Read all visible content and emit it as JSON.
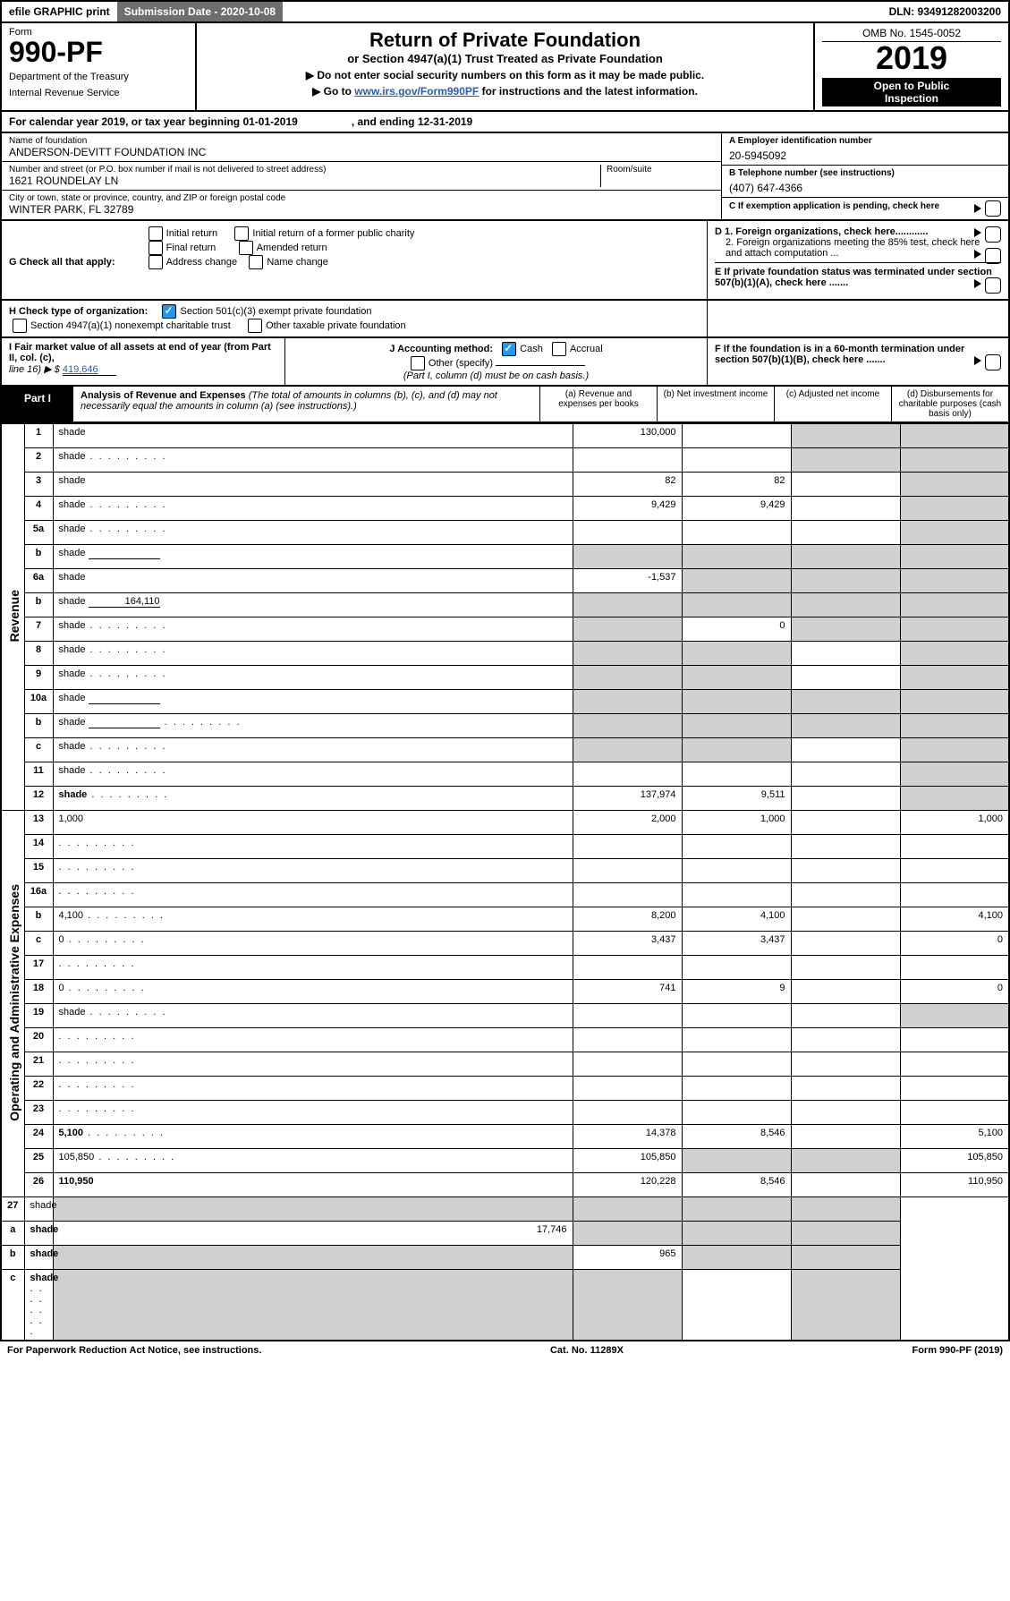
{
  "top_bar": {
    "efile": "efile GRAPHIC print",
    "sub_date_label": "Submission Date - 2020-10-08",
    "dln": "DLN: 93491282003200"
  },
  "header": {
    "form_word": "Form",
    "form_number": "990-PF",
    "dept1": "Department of the Treasury",
    "dept2": "Internal Revenue Service",
    "title": "Return of Private Foundation",
    "subtitle": "or Section 4947(a)(1) Trust Treated as Private Foundation",
    "instr1": "▶ Do not enter social security numbers on this form as it may be made public.",
    "instr2_pre": "▶ Go to ",
    "instr2_link": "www.irs.gov/Form990PF",
    "instr2_post": " for instructions and the latest information.",
    "omb": "OMB No. 1545-0052",
    "year": "2019",
    "open1": "Open to Public",
    "open2": "Inspection"
  },
  "cal": {
    "a": "For calendar year 2019, or tax year beginning 01-01-2019",
    "b": ", and ending 12-31-2019"
  },
  "info": {
    "name_label": "Name of foundation",
    "name": "ANDERSON-DEVITT FOUNDATION INC",
    "addr_label": "Number and street (or P.O. box number if mail is not delivered to street address)",
    "addr": "1621 ROUNDELAY LN",
    "room_label": "Room/suite",
    "city_label": "City or town, state or province, country, and ZIP or foreign postal code",
    "city": "WINTER PARK, FL  32789",
    "a_label": "A Employer identification number",
    "a_val": "20-5945092",
    "b_label": "B Telephone number (see instructions)",
    "b_val": "(407) 647-4366",
    "c_label": "C If exemption application is pending, check here"
  },
  "g": {
    "label": "G Check all that apply:",
    "opts": [
      "Initial return",
      "Initial return of a former public charity",
      "Final return",
      "Amended return",
      "Address change",
      "Name change"
    ],
    "d1": "D 1. Foreign organizations, check here............",
    "d2": "2. Foreign organizations meeting the 85% test, check here and attach computation ...",
    "e": "E  If private foundation status was terminated under section 507(b)(1)(A), check here ......."
  },
  "h": {
    "label": "H Check type of organization:",
    "o1": "Section 501(c)(3) exempt private foundation",
    "o2": "Section 4947(a)(1) nonexempt charitable trust",
    "o3": "Other taxable private foundation"
  },
  "ij": {
    "i_label1": "I Fair market value of all assets at end of year (from Part II, col. (c),",
    "i_label2": "line 16) ▶ $",
    "i_val": "419,646",
    "j_label": "J Accounting method:",
    "j_cash": "Cash",
    "j_accrual": "Accrual",
    "j_other": "Other (specify)",
    "j_note": "(Part I, column (d) must be on cash basis.)",
    "f": "F  If the foundation is in a 60-month termination under section 507(b)(1)(B), check here ......."
  },
  "part1_header": {
    "part": "Part I",
    "title": "Analysis of Revenue and Expenses",
    "note": " (The total of amounts in columns (b), (c), and (d) may not necessarily equal the amounts in column (a) (see instructions).)",
    "col_a": "(a)   Revenue and expenses per books",
    "col_b": "(b)  Net investment income",
    "col_c": "(c)  Adjusted net income",
    "col_d": "(d)  Disbursements for charitable purposes (cash basis only)"
  },
  "side_labels": {
    "revenue": "Revenue",
    "expenses": "Operating and Administrative Expenses"
  },
  "rows": [
    {
      "n": "1",
      "d": "shade",
      "a": "130,000",
      "b": "",
      "c": "shade"
    },
    {
      "n": "2",
      "d": "shade",
      "a": "",
      "b": "",
      "c": "shade",
      "dots": true
    },
    {
      "n": "3",
      "d": "shade",
      "a": "82",
      "b": "82",
      "c": ""
    },
    {
      "n": "4",
      "d": "shade",
      "a": "9,429",
      "b": "9,429",
      "c": "",
      "dots": true
    },
    {
      "n": "5a",
      "d": "shade",
      "a": "",
      "b": "",
      "c": "",
      "dots": true
    },
    {
      "n": "b",
      "d": "shade",
      "a": "shade",
      "b": "shade",
      "c": "shade",
      "hasblank": true
    },
    {
      "n": "6a",
      "d": "shade",
      "a": "-1,537",
      "b": "shade",
      "c": "shade"
    },
    {
      "n": "b",
      "d": "shade",
      "a": "shade",
      "b": "shade",
      "c": "shade",
      "inline_val": "164,110"
    },
    {
      "n": "7",
      "d": "shade",
      "a": "shade",
      "b": "0",
      "c": "shade",
      "dots": true
    },
    {
      "n": "8",
      "d": "shade",
      "a": "shade",
      "b": "shade",
      "c": "",
      "dots": true
    },
    {
      "n": "9",
      "d": "shade",
      "a": "shade",
      "b": "shade",
      "c": "",
      "dots": true
    },
    {
      "n": "10a",
      "d": "shade",
      "a": "shade",
      "b": "shade",
      "c": "shade",
      "hasblank": true
    },
    {
      "n": "b",
      "d": "shade",
      "a": "shade",
      "b": "shade",
      "c": "shade",
      "dots": true,
      "hasblank": true
    },
    {
      "n": "c",
      "d": "shade",
      "a": "shade",
      "b": "shade",
      "c": "",
      "dots": true
    },
    {
      "n": "11",
      "d": "shade",
      "a": "",
      "b": "",
      "c": "",
      "dots": true
    },
    {
      "n": "12",
      "d": "shade",
      "a": "137,974",
      "b": "9,511",
      "c": "",
      "dots": true,
      "bold": true
    }
  ],
  "exp_rows": [
    {
      "n": "13",
      "d": "1,000",
      "a": "2,000",
      "b": "1,000",
      "c": ""
    },
    {
      "n": "14",
      "d": "",
      "a": "",
      "b": "",
      "c": "",
      "dots": true
    },
    {
      "n": "15",
      "d": "",
      "a": "",
      "b": "",
      "c": "",
      "dots": true
    },
    {
      "n": "16a",
      "d": "",
      "a": "",
      "b": "",
      "c": "",
      "dots": true
    },
    {
      "n": "b",
      "d": "4,100",
      "a": "8,200",
      "b": "4,100",
      "c": "",
      "dots": true
    },
    {
      "n": "c",
      "d": "0",
      "a": "3,437",
      "b": "3,437",
      "c": "",
      "dots": true
    },
    {
      "n": "17",
      "d": "",
      "a": "",
      "b": "",
      "c": "",
      "dots": true
    },
    {
      "n": "18",
      "d": "0",
      "a": "741",
      "b": "9",
      "c": "",
      "dots": true
    },
    {
      "n": "19",
      "d": "shade",
      "a": "",
      "b": "",
      "c": "",
      "dots": true
    },
    {
      "n": "20",
      "d": "",
      "a": "",
      "b": "",
      "c": "",
      "dots": true
    },
    {
      "n": "21",
      "d": "",
      "a": "",
      "b": "",
      "c": "",
      "dots": true
    },
    {
      "n": "22",
      "d": "",
      "a": "",
      "b": "",
      "c": "",
      "dots": true
    },
    {
      "n": "23",
      "d": "",
      "a": "",
      "b": "",
      "c": "",
      "dots": true
    },
    {
      "n": "24",
      "d": "5,100",
      "a": "14,378",
      "b": "8,546",
      "c": "",
      "dots": true,
      "bold": true
    },
    {
      "n": "25",
      "d": "105,850",
      "a": "105,850",
      "b": "shade",
      "c": "shade",
      "dots": true
    },
    {
      "n": "26",
      "d": "110,950",
      "a": "120,228",
      "b": "8,546",
      "c": "",
      "bold": true
    }
  ],
  "bottom_rows": [
    {
      "n": "27",
      "d": "shade",
      "a": "shade",
      "b": "shade",
      "c": "shade"
    },
    {
      "n": "a",
      "d": "shade",
      "a": "17,746",
      "b": "shade",
      "c": "shade",
      "bold": true
    },
    {
      "n": "b",
      "d": "shade",
      "a": "shade",
      "b": "965",
      "c": "shade",
      "bold": true
    },
    {
      "n": "c",
      "d": "shade",
      "a": "shade",
      "b": "shade",
      "c": "",
      "bold": true,
      "dots": true
    }
  ],
  "footer": {
    "left": "For Paperwork Reduction Act Notice, see instructions.",
    "mid": "Cat. No. 11289X",
    "right": "Form 990-PF (2019)"
  }
}
